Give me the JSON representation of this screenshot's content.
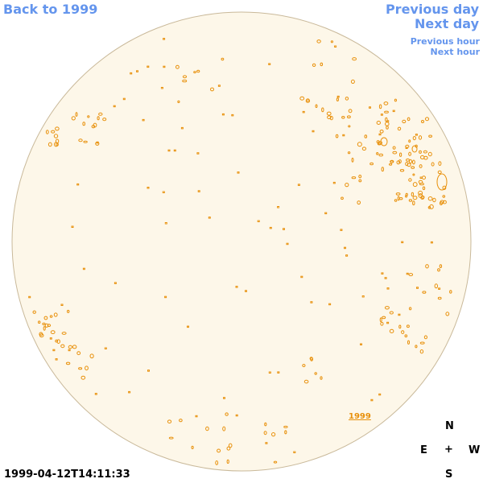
{
  "nav": {
    "back": "Back to 1999",
    "previous_day": "Previous day",
    "next_day": "Next day",
    "previous_hour": "Previous hour",
    "next_hour": "Next hour"
  },
  "disk": {
    "fill_color": "#fdf7e9",
    "edge_color": "#c9b99a",
    "contour_color": "#e8900a"
  },
  "year_label": "1999",
  "compass": {
    "n": "N",
    "s": "S",
    "e": "E",
    "w": "W",
    "center": "+"
  },
  "timestamp": "1999-04-12T14:11:33"
}
